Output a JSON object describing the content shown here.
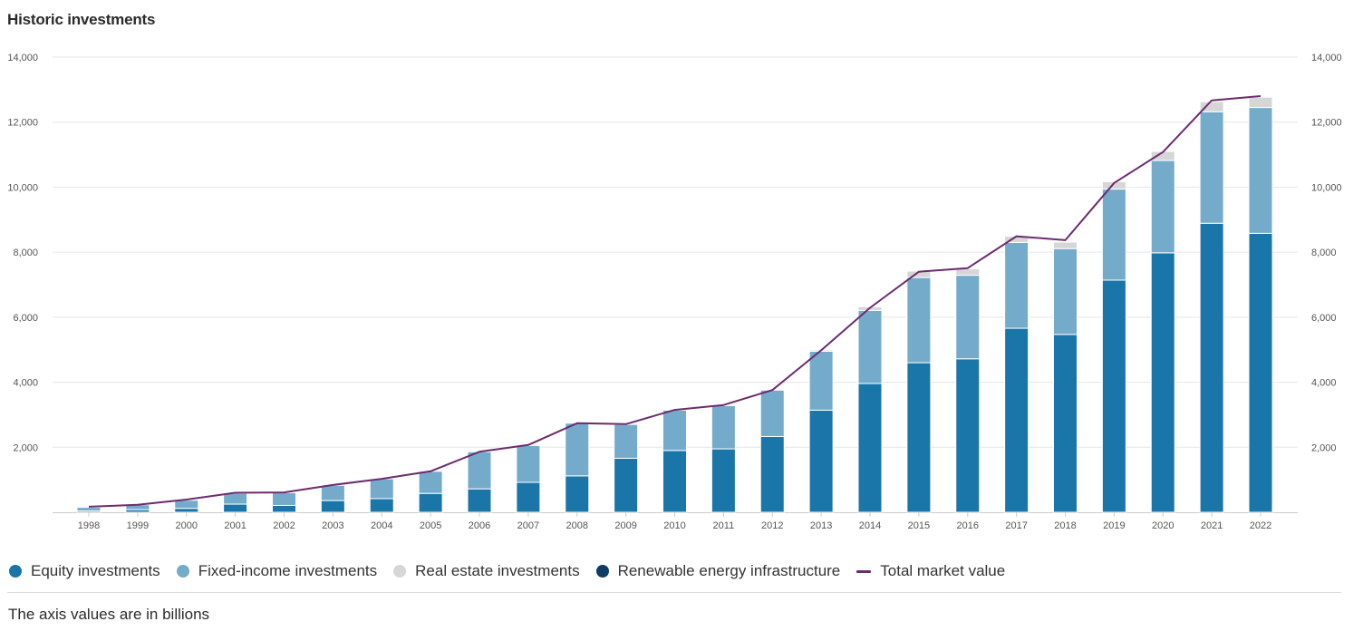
{
  "title": "Historic investments",
  "note": "The axis values are in billions",
  "chart_data": {
    "type": "bar",
    "stacked": true,
    "categories": [
      "1998",
      "1999",
      "2000",
      "2001",
      "2002",
      "2003",
      "2004",
      "2005",
      "2006",
      "2007",
      "2008",
      "2009",
      "2010",
      "2011",
      "2012",
      "2013",
      "2014",
      "2015",
      "2016",
      "2017",
      "2018",
      "2019",
      "2020",
      "2021",
      "2022"
    ],
    "y_ticks": [
      2000,
      4000,
      6000,
      8000,
      10000,
      12000,
      14000
    ],
    "y_tick_labels": [
      "2,000",
      "4,000",
      "6,000",
      "8,000",
      "10,000",
      "12,000",
      "14,000"
    ],
    "ylim": [
      0,
      14000
    ],
    "secondary_axis": true,
    "grid": true,
    "legend_position": "bottom-left",
    "series": [
      {
        "name": "Equity investments",
        "color": "#1a76a8",
        "kind": "bar",
        "values": [
          40,
          80,
          120,
          250,
          210,
          360,
          420,
          580,
          720,
          920,
          1120,
          1660,
          1900,
          1950,
          2330,
          3140,
          3960,
          4600,
          4720,
          5660,
          5470,
          7140,
          7980,
          8890,
          8580
        ]
      },
      {
        "name": "Fixed-income investments",
        "color": "#74abcb",
        "kind": "bar",
        "values": [
          110,
          150,
          250,
          330,
          390,
          470,
          610,
          680,
          1140,
          1130,
          1620,
          1040,
          1240,
          1330,
          1430,
          1810,
          2250,
          2620,
          2570,
          2640,
          2640,
          2800,
          2840,
          3430,
          3870
        ]
      },
      {
        "name": "Real estate investments",
        "color": "#d6d6d6",
        "kind": "bar",
        "values": [
          0,
          0,
          0,
          0,
          0,
          0,
          0,
          0,
          0,
          0,
          0,
          0,
          0,
          0,
          10,
          40,
          110,
          200,
          200,
          190,
          200,
          230,
          280,
          310,
          320
        ]
      },
      {
        "name": "Renewable energy infrastructure",
        "color": "#0d3c66",
        "kind": "bar",
        "values": [
          0,
          0,
          0,
          0,
          0,
          0,
          0,
          0,
          0,
          0,
          0,
          0,
          0,
          0,
          0,
          0,
          0,
          0,
          0,
          0,
          0,
          0,
          0,
          10,
          15
        ]
      },
      {
        "name": "Total market value",
        "color": "#6b2c6e",
        "kind": "line",
        "values": [
          170,
          230,
          390,
          600,
          610,
          840,
          1030,
          1260,
          1860,
          2070,
          2740,
          2710,
          3150,
          3300,
          3760,
          4980,
          6290,
          7400,
          7510,
          8490,
          8370,
          10130,
          11080,
          12670,
          12800
        ]
      }
    ]
  }
}
